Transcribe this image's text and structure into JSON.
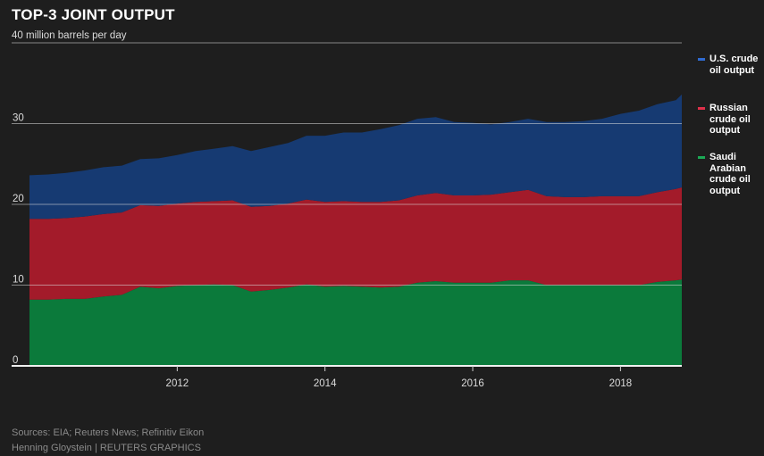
{
  "chart_data": {
    "type": "area",
    "stacked": true,
    "title": "TOP-3 JOINT OUTPUT",
    "ylabel": "million barrels per day",
    "ylim": [
      0,
      40
    ],
    "yticks": [
      0,
      10,
      20,
      30,
      40
    ],
    "ytick_labels": [
      "0",
      "10",
      "20",
      "30",
      "40 million barrels per day"
    ],
    "xlim": [
      2010.0,
      2018.83
    ],
    "xticks": [
      2012,
      2014,
      2016,
      2018
    ],
    "xtick_labels": [
      "2012",
      "2014",
      "2016",
      "2018"
    ],
    "grid": true,
    "legend_position": "right",
    "x": [
      2010.0,
      2010.25,
      2010.5,
      2010.75,
      2011.0,
      2011.25,
      2011.5,
      2011.75,
      2012.0,
      2012.25,
      2012.5,
      2012.75,
      2013.0,
      2013.25,
      2013.5,
      2013.75,
      2014.0,
      2014.25,
      2014.5,
      2014.75,
      2015.0,
      2015.25,
      2015.5,
      2015.75,
      2016.0,
      2016.25,
      2016.5,
      2016.75,
      2017.0,
      2017.25,
      2017.5,
      2017.75,
      2018.0,
      2018.25,
      2018.5,
      2018.75,
      2018.83
    ],
    "series": [
      {
        "name": "Saudi Arabian crude oil output",
        "color": "#0b7a3b",
        "values": [
          8.2,
          8.2,
          8.3,
          8.3,
          8.6,
          8.8,
          9.8,
          9.6,
          9.9,
          10.0,
          10.1,
          10.0,
          9.2,
          9.4,
          9.7,
          10.1,
          9.8,
          9.9,
          9.8,
          9.7,
          9.8,
          10.3,
          10.5,
          10.3,
          10.3,
          10.3,
          10.6,
          10.6,
          10.0,
          10.0,
          10.0,
          10.0,
          10.0,
          10.0,
          10.4,
          10.6,
          10.7
        ]
      },
      {
        "name": "Russian crude oil output",
        "color": "#a31b2a",
        "values": [
          10.0,
          10.0,
          10.0,
          10.2,
          10.2,
          10.2,
          10.1,
          10.2,
          10.2,
          10.3,
          10.3,
          10.5,
          10.5,
          10.4,
          10.4,
          10.5,
          10.5,
          10.5,
          10.5,
          10.6,
          10.7,
          10.8,
          10.9,
          10.8,
          10.8,
          10.9,
          10.9,
          11.2,
          11.0,
          10.9,
          10.9,
          11.0,
          11.0,
          11.0,
          11.1,
          11.3,
          11.4
        ]
      },
      {
        "name": "U.S. crude oil output",
        "color": "#163a72",
        "values": [
          5.4,
          5.5,
          5.6,
          5.7,
          5.8,
          5.8,
          5.7,
          5.9,
          6.0,
          6.3,
          6.5,
          6.7,
          6.9,
          7.3,
          7.5,
          7.9,
          8.2,
          8.5,
          8.6,
          9.0,
          9.3,
          9.5,
          9.4,
          9.1,
          9.0,
          8.7,
          8.7,
          8.8,
          9.2,
          9.3,
          9.4,
          9.6,
          10.2,
          10.6,
          10.9,
          11.0,
          11.5
        ]
      }
    ]
  },
  "legend": [
    {
      "label": "U.S. crude oil output",
      "color": "#163a72"
    },
    {
      "label": "Russian crude oil output",
      "color": "#a31b2a"
    },
    {
      "label": "Saudi Arabian crude oil output",
      "color": "#0b7a3b"
    }
  ],
  "footer": {
    "sources": "Sources: EIA; Reuters News; Refinitiv Eikon",
    "credit": "Henning Gloystein    | REUTERS GRAPHICS"
  }
}
